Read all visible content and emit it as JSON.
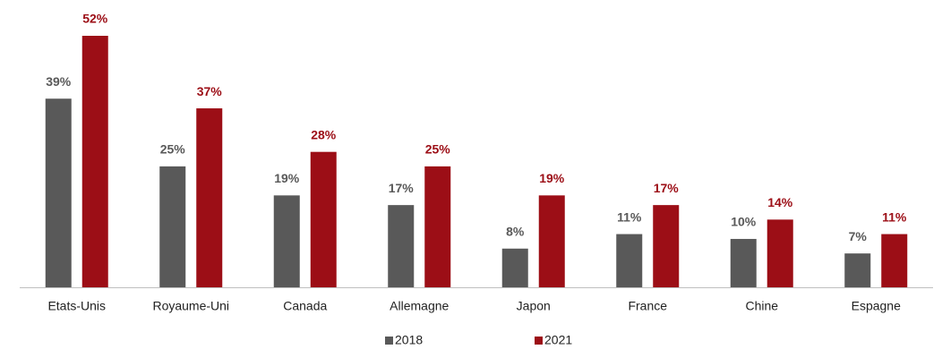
{
  "chart_data": {
    "type": "bar",
    "categories": [
      "Etats-Unis",
      "Royaume-Uni",
      "Canada",
      "Allemagne",
      "Japon",
      "France",
      "Chine",
      "Espagne"
    ],
    "series": [
      {
        "name": "2018",
        "color": "#595959",
        "values": [
          39,
          25,
          19,
          17,
          8,
          11,
          10,
          7
        ],
        "value_labels": [
          "39%",
          "25%",
          "19%",
          "17%",
          "8%",
          "11%",
          "10%",
          "7%"
        ]
      },
      {
        "name": "2021",
        "color": "#9c0e16",
        "values": [
          52,
          37,
          28,
          25,
          19,
          17,
          14,
          11
        ],
        "value_labels": [
          "52%",
          "37%",
          "28%",
          "25%",
          "19%",
          "17%",
          "14%",
          "11%"
        ]
      }
    ],
    "legend": "bottom"
  }
}
